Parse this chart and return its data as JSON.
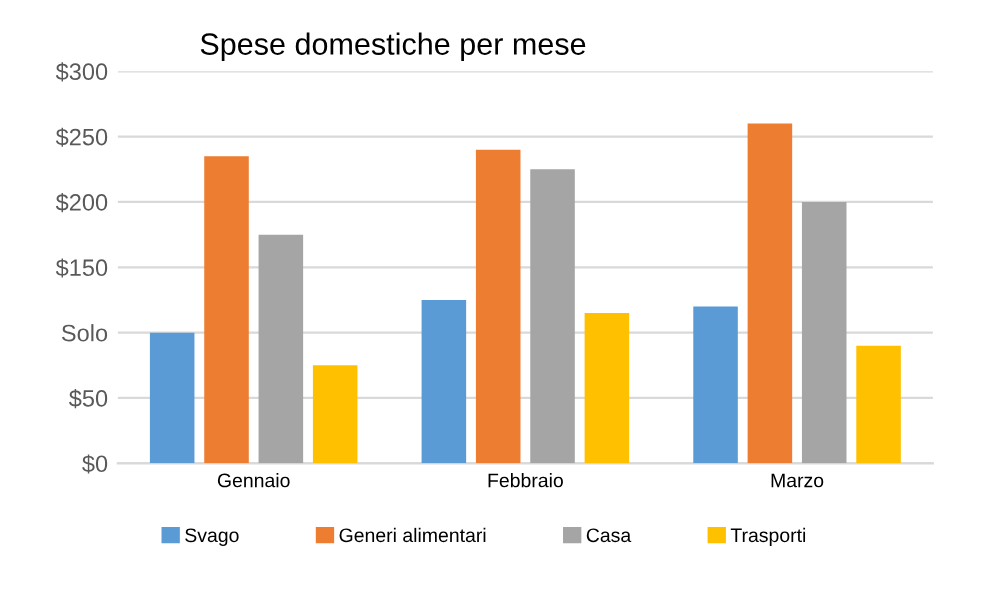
{
  "chart_data": {
    "type": "bar",
    "title": "Spese domestiche per mese",
    "categories": [
      "Gennaio",
      "Febbraio",
      "Marzo"
    ],
    "series": [
      {
        "name": "Svago",
        "color": "#5b9bd5",
        "values": [
          100,
          125,
          120
        ]
      },
      {
        "name": "Generi alimentari",
        "color": "#ed7d31",
        "values": [
          235,
          240,
          260
        ]
      },
      {
        "name": "Casa",
        "color": "#a5a5a5",
        "values": [
          175,
          225,
          200
        ]
      },
      {
        "name": "Trasporti",
        "color": "#ffc000",
        "values": [
          75,
          115,
          90
        ]
      }
    ],
    "ylim": [
      0,
      300
    ],
    "yticks": [
      {
        "value": 0,
        "label": "$0"
      },
      {
        "value": 50,
        "label": "$50"
      },
      {
        "value": 100,
        "label": "Solo"
      },
      {
        "value": 150,
        "label": "$150"
      },
      {
        "value": 200,
        "label": "$200"
      },
      {
        "value": 250,
        "label": "$250"
      },
      {
        "value": 300,
        "label": "$300"
      }
    ],
    "grid": "y",
    "legend": "bottom"
  }
}
